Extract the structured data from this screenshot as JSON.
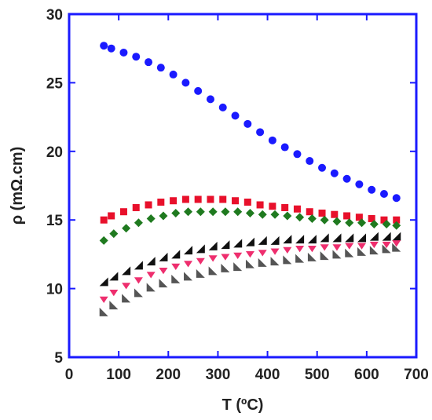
{
  "chart_data": {
    "type": "scatter",
    "title": "",
    "xlabel": "T (ºC)",
    "ylabel": "ρ (mΩ.cm)",
    "xlim": [
      0,
      700
    ],
    "ylim": [
      5,
      30
    ],
    "xticks": [
      0,
      100,
      200,
      300,
      400,
      500,
      600,
      700
    ],
    "yticks": [
      5,
      10,
      15,
      20,
      25,
      30
    ],
    "grid": false,
    "legend": "none",
    "frame_color": "#1a1aff",
    "series": [
      {
        "marker": "circle",
        "color": "#1a1aff",
        "x": [
          70,
          85,
          110,
          135,
          160,
          185,
          210,
          235,
          260,
          285,
          310,
          335,
          360,
          385,
          410,
          435,
          460,
          485,
          510,
          535,
          560,
          585,
          610,
          635,
          660
        ],
        "y": [
          27.7,
          27.5,
          27.2,
          26.9,
          26.5,
          26.1,
          25.6,
          25.0,
          24.4,
          23.8,
          23.2,
          22.6,
          22.0,
          21.4,
          20.8,
          20.3,
          19.8,
          19.3,
          18.8,
          18.4,
          18.0,
          17.6,
          17.2,
          16.9,
          16.6
        ]
      },
      {
        "marker": "square",
        "color": "#e8102b",
        "x": [
          70,
          85,
          110,
          135,
          160,
          185,
          210,
          235,
          260,
          285,
          310,
          335,
          360,
          385,
          410,
          435,
          460,
          485,
          510,
          535,
          560,
          585,
          610,
          635,
          660
        ],
        "y": [
          15.0,
          15.3,
          15.6,
          15.9,
          16.1,
          16.3,
          16.4,
          16.5,
          16.5,
          16.5,
          16.5,
          16.4,
          16.3,
          16.1,
          16.0,
          15.9,
          15.8,
          15.6,
          15.5,
          15.4,
          15.3,
          15.2,
          15.1,
          15.0,
          15.0
        ]
      },
      {
        "marker": "diamond",
        "color": "#1f7a1f",
        "x": [
          70,
          90,
          115,
          140,
          165,
          190,
          215,
          240,
          265,
          290,
          315,
          340,
          365,
          390,
          415,
          440,
          465,
          490,
          515,
          540,
          565,
          590,
          615,
          640,
          660
        ],
        "y": [
          13.5,
          14.0,
          14.4,
          14.8,
          15.1,
          15.3,
          15.5,
          15.6,
          15.6,
          15.6,
          15.6,
          15.6,
          15.5,
          15.4,
          15.4,
          15.3,
          15.2,
          15.1,
          15.0,
          14.9,
          14.8,
          14.8,
          14.7,
          14.7,
          14.6
        ]
      },
      {
        "marker": "triangle-left",
        "color": "#111111",
        "x": [
          70,
          90,
          115,
          140,
          165,
          190,
          215,
          240,
          265,
          290,
          315,
          340,
          365,
          390,
          415,
          440,
          465,
          490,
          515,
          540,
          565,
          590,
          615,
          640,
          660
        ],
        "y": [
          10.5,
          10.9,
          11.3,
          11.7,
          12.0,
          12.3,
          12.5,
          12.8,
          12.9,
          13.1,
          13.2,
          13.3,
          13.4,
          13.5,
          13.5,
          13.6,
          13.6,
          13.6,
          13.7,
          13.7,
          13.7,
          13.7,
          13.8,
          13.8,
          13.8
        ]
      },
      {
        "marker": "triangle-down",
        "color": "#ee2e6e",
        "x": [
          70,
          90,
          115,
          140,
          165,
          190,
          215,
          240,
          265,
          290,
          315,
          340,
          365,
          390,
          415,
          440,
          465,
          490,
          515,
          540,
          565,
          590,
          615,
          640,
          660
        ],
        "y": [
          9.2,
          9.7,
          10.2,
          10.6,
          11.0,
          11.3,
          11.6,
          11.8,
          12.0,
          12.2,
          12.3,
          12.4,
          12.5,
          12.6,
          12.7,
          12.8,
          12.9,
          12.9,
          13.0,
          13.0,
          13.1,
          13.1,
          13.2,
          13.2,
          13.3
        ]
      },
      {
        "marker": "triangle-right",
        "color": "#555555",
        "x": [
          70,
          90,
          115,
          140,
          165,
          190,
          215,
          240,
          265,
          290,
          315,
          340,
          365,
          390,
          415,
          440,
          465,
          490,
          515,
          540,
          565,
          590,
          615,
          640,
          660
        ],
        "y": [
          8.3,
          8.8,
          9.3,
          9.7,
          10.1,
          10.4,
          10.7,
          10.9,
          11.1,
          11.3,
          11.5,
          11.6,
          11.8,
          11.9,
          12.0,
          12.1,
          12.2,
          12.3,
          12.4,
          12.5,
          12.6,
          12.7,
          12.8,
          12.9,
          13.0
        ]
      }
    ]
  }
}
